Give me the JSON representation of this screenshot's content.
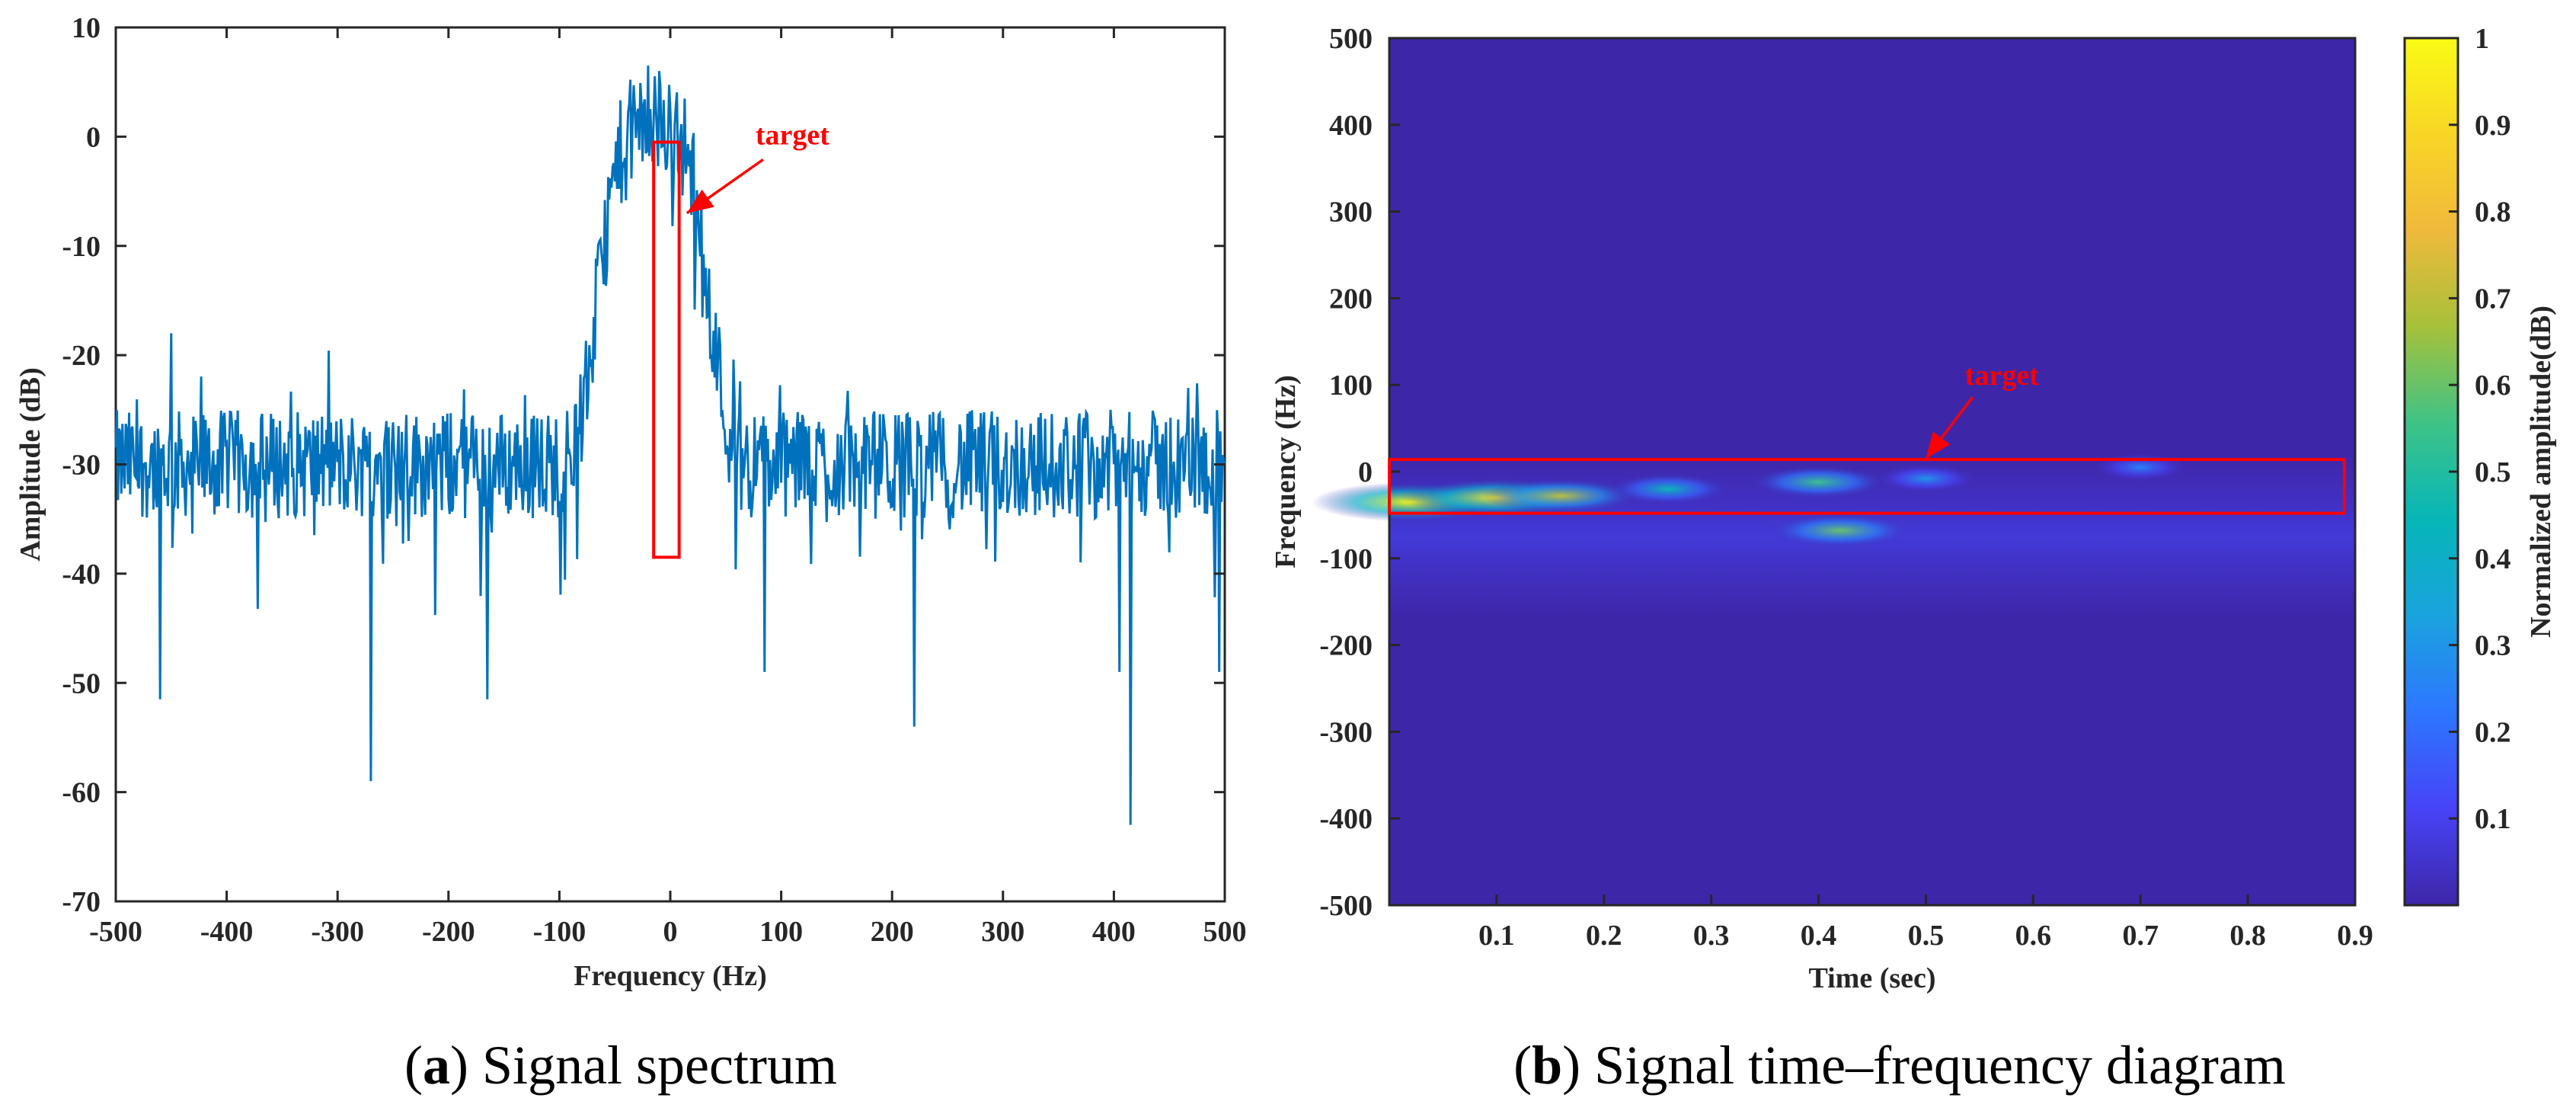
{
  "chart_data": [
    {
      "type": "line",
      "caption_letter": "a",
      "caption_text": "Signal spectrum",
      "title": "",
      "xlabel": "Frequency (Hz)",
      "ylabel": "Amplitude (dB)",
      "xlim": [
        -500,
        500
      ],
      "ylim": [
        -70,
        10
      ],
      "xticks": [
        -500,
        -400,
        -300,
        -200,
        -100,
        0,
        100,
        200,
        300,
        400,
        500
      ],
      "yticks": [
        10,
        0,
        -10,
        -20,
        -30,
        -40,
        -50,
        -60,
        -70
      ],
      "series_color": "#0072bd",
      "noise_floor_db": -30,
      "peak_center_hz": -15,
      "peak_level_db": 1,
      "peak_max_db": 6.5,
      "notable_dips": [
        {
          "x": -460,
          "y": -51.5
        },
        {
          "x": -270,
          "y": -59
        },
        {
          "x": -165,
          "y": -51.5
        },
        {
          "x": 85,
          "y": -49
        },
        {
          "x": 220,
          "y": -54
        },
        {
          "x": 405,
          "y": -49
        },
        {
          "x": 415,
          "y": -63
        },
        {
          "x": 495,
          "y": -49
        }
      ],
      "notable_peaks": [
        {
          "x": -450,
          "y": -18
        },
        {
          "x": -20,
          "y": 6.5
        },
        {
          "x": -10,
          "y": 6
        }
      ],
      "target_box": {
        "x0": -15,
        "x1": 8,
        "y0": -38.5,
        "y1": -0.5
      },
      "annotation": {
        "text": "target",
        "color": "#ff0000",
        "arrow_to": {
          "x": 15,
          "y": -7
        },
        "text_at": {
          "x": 70,
          "y": 0
        }
      }
    },
    {
      "type": "heatmap",
      "caption_letter": "b",
      "caption_text": "Signal time–frequency diagram",
      "title": "",
      "xlabel": "Time (sec)",
      "ylabel": "Frequency (Hz)",
      "colorbar_label": "Normalized amplitude(dB)",
      "xlim": [
        0,
        0.9
      ],
      "ylim": [
        -500,
        500
      ],
      "xticks": [
        0.1,
        0.2,
        0.3,
        0.4,
        0.5,
        0.6,
        0.7,
        0.8,
        0.9
      ],
      "yticks": [
        500,
        400,
        300,
        200,
        100,
        0,
        -100,
        -200,
        -300,
        -400,
        -500
      ],
      "clim": [
        0,
        1
      ],
      "colorbar_ticks": [
        1,
        0.9,
        0.8,
        0.7,
        0.6,
        0.5,
        0.4,
        0.3,
        0.2,
        0.1
      ],
      "colormap": [
        "#3e26a8",
        "#4743f7",
        "#2d76ff",
        "#1aa3de",
        "#06b6b8",
        "#3ec387",
        "#a6c13a",
        "#f0b93c",
        "#f9d526",
        "#f9fb15"
      ],
      "background_level": 0.02,
      "hotspots": [
        {
          "t": 0.02,
          "f": -35,
          "amp": 1.0
        },
        {
          "t": 0.1,
          "f": -30,
          "amp": 0.95
        },
        {
          "t": 0.16,
          "f": -28,
          "amp": 0.7
        },
        {
          "t": 0.26,
          "f": -20,
          "amp": 0.45
        },
        {
          "t": 0.4,
          "f": -12,
          "amp": 0.55
        },
        {
          "t": 0.42,
          "f": -68,
          "amp": 0.6
        },
        {
          "t": 0.5,
          "f": -8,
          "amp": 0.3
        },
        {
          "t": 0.7,
          "f": 5,
          "amp": 0.25
        }
      ],
      "target_box": {
        "t0": 0,
        "t1": 0.89,
        "f0": -48,
        "f1": 14
      },
      "annotation": {
        "text": "target",
        "color": "#ff0000",
        "arrow_to": {
          "t": 0.5,
          "f": 15
        },
        "text_at": {
          "t": 0.54,
          "f": 100
        }
      }
    }
  ]
}
